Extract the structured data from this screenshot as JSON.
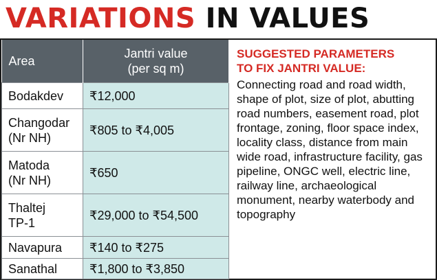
{
  "title": {
    "part1": "VARIATIONS",
    "part2": "IN VALUES"
  },
  "table": {
    "headers": {
      "area": "Area",
      "value_line1": "Jantri value",
      "value_line2": "(per sq m)"
    },
    "rows": [
      {
        "area": [
          "Bodakdev"
        ],
        "value": "₹12,000"
      },
      {
        "area": [
          "Changodar",
          "(Nr NH)"
        ],
        "value": "₹805 to ₹4,005"
      },
      {
        "area": [
          "Matoda",
          "(Nr NH)"
        ],
        "value": "₹650"
      },
      {
        "area": [
          "Thaltej",
          "TP-1"
        ],
        "value": "₹29,000 to ₹54,500"
      },
      {
        "area": [
          "Navapura"
        ],
        "value": "₹140 to ₹275"
      },
      {
        "area": [
          "Sanathal"
        ],
        "value": "₹1,800 to ₹3,850"
      }
    ]
  },
  "parameters": {
    "heading_line1": "SUGGESTED PARAMETERS",
    "heading_line2": "TO FIX JANTRI VALUE:",
    "text": "Connecting road and road width, shape of plot, size of plot, abutting road numbers, easement road, plot frontage, zoning, floor space index, locality class, distance from main wide road, infrastructure facility, gas pipeline, ONGC well, electric line, railway line, archaeological monument, nearby waterbody and topography"
  },
  "colors": {
    "title_red": "#d52a24",
    "header_gray": "#586168",
    "value_cell_teal": "#cfe9e8"
  }
}
